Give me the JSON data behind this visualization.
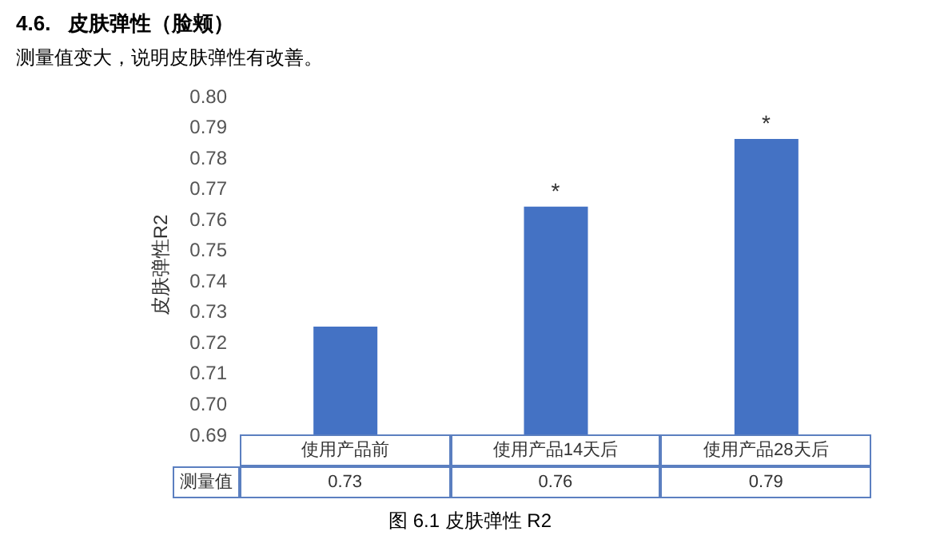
{
  "chart_data": {
    "type": "bar",
    "title": "4.6.   皮肤弹性（脸颊）",
    "subtitle": "测量值变大，说明皮肤弹性有改善。",
    "ylabel": "皮肤弹性R2",
    "categories": [
      "使用产品前",
      "使用产品14天后",
      "使用产品28天后"
    ],
    "series": [
      {
        "name": "测量值",
        "color": "#4472c4",
        "values": [
          0.725,
          0.764,
          0.786
        ],
        "value_labels": [
          "0.73",
          "0.76",
          "0.79"
        ]
      }
    ],
    "ylim": [
      0.69,
      0.8
    ],
    "yticks": [
      0.69,
      {
        "value": 0.7,
        "label": "0.70"
      },
      0.71,
      0.72,
      0.73,
      0.74,
      0.75,
      0.76,
      0.77,
      0.78,
      0.79,
      {
        "value": 0.8,
        "label": "0.80"
      }
    ],
    "annotations": [
      {
        "text": "*",
        "x": "使用产品14天后",
        "y": 0.764
      },
      {
        "text": "*",
        "x": "使用产品28天后",
        "y": 0.786
      },
      "图 6.1 皮肤弹性 R2"
    ]
  }
}
